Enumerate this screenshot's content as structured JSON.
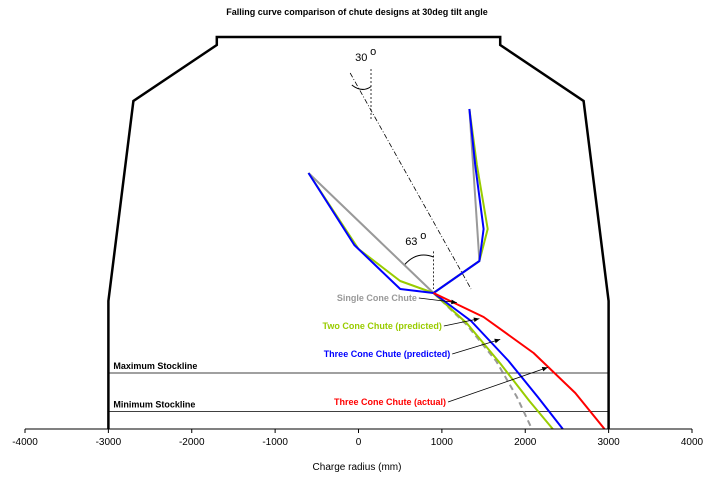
{
  "chart_data": {
    "type": "line",
    "title": "Falling curve comparison of chute designs at 30deg tilt angle",
    "xlabel": "Charge radius (mm)",
    "ylabel": "",
    "xlim": [
      -4000,
      4000
    ],
    "x_ticks": [
      "-4000",
      "-3000",
      "-2000",
      "-1000",
      "0",
      "1000",
      "2000",
      "3000",
      "4000"
    ],
    "grid": false,
    "furnace_outline": {
      "x": [
        -3000,
        -3000,
        -2700,
        -1700,
        -1700,
        1700,
        1700,
        2700,
        3000,
        3000
      ],
      "h": [
        0,
        160,
        410,
        480,
        490,
        490,
        480,
        410,
        160,
        0
      ]
    },
    "stocklines": [
      {
        "label": "Maximum Stockline",
        "h": 70
      },
      {
        "label": "Minimum Stockline",
        "h": 22
      }
    ],
    "angle_labels": [
      {
        "text": "30",
        "degree_mark": "o"
      },
      {
        "text": "63",
        "degree_mark": "o"
      }
    ],
    "series": [
      {
        "name": "Single Cone Chute",
        "color": "#999999",
        "dashed_trajectory": true,
        "chute": [
          [
            -600,
            320
          ],
          [
            900,
            170
          ],
          [
            1450,
            210
          ],
          [
            1330,
            400
          ]
        ],
        "trajectory": [
          [
            900,
            170
          ],
          [
            1300,
            130
          ],
          [
            1650,
            85
          ],
          [
            1900,
            40
          ],
          [
            2080,
            0
          ]
        ]
      },
      {
        "name": "Two Cone Chute (predicted)",
        "color": "#99cc00",
        "dashed_trajectory": false,
        "chute": [
          [
            -600,
            320
          ],
          [
            0,
            225
          ],
          [
            500,
            185
          ],
          [
            900,
            170
          ],
          [
            1450,
            210
          ],
          [
            1550,
            250
          ],
          [
            1420,
            330
          ],
          [
            1330,
            400
          ]
        ],
        "trajectory": [
          [
            900,
            170
          ],
          [
            1300,
            132
          ],
          [
            1700,
            82
          ],
          [
            2050,
            35
          ],
          [
            2330,
            0
          ]
        ]
      },
      {
        "name": "Three Cone Chute (predicted)",
        "color": "#0000ff",
        "dashed_trajectory": false,
        "chute": [
          [
            -600,
            320
          ],
          [
            -50,
            230
          ],
          [
            500,
            175
          ],
          [
            900,
            170
          ],
          [
            1450,
            210
          ],
          [
            1500,
            250
          ],
          [
            1400,
            330
          ],
          [
            1330,
            400
          ]
        ],
        "trajectory": [
          [
            900,
            170
          ],
          [
            1350,
            135
          ],
          [
            1800,
            85
          ],
          [
            2150,
            40
          ],
          [
            2450,
            0
          ]
        ]
      },
      {
        "name": "Three Cone Chute (actual)",
        "color": "#ff0000",
        "dashed_trajectory": false,
        "chute": [],
        "trajectory": [
          [
            900,
            170
          ],
          [
            1500,
            140
          ],
          [
            2100,
            95
          ],
          [
            2600,
            45
          ],
          [
            2950,
            0
          ]
        ]
      }
    ]
  }
}
